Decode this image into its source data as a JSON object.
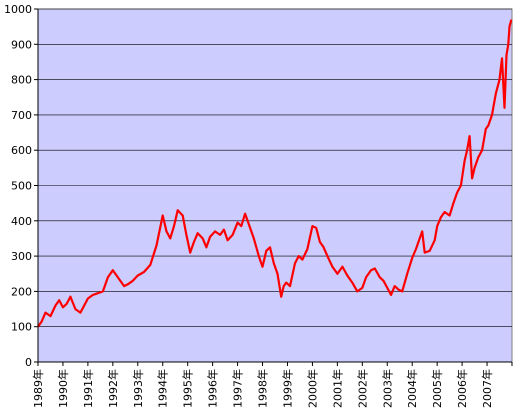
{
  "chart_data": {
    "type": "line",
    "title": "",
    "xlabel": "",
    "ylabel": "",
    "ylim": [
      0,
      1000
    ],
    "y_ticks": [
      0,
      100,
      200,
      300,
      400,
      500,
      600,
      700,
      800,
      900,
      1000
    ],
    "x_tick_labels": [
      "1989年",
      "1990年",
      "1991年",
      "1992年",
      "1993年",
      "1994年",
      "1995年",
      "1996年",
      "1997年",
      "1998年",
      "1999年",
      "2000年",
      "2001年",
      "2002年",
      "2003年",
      "2004年",
      "2005年",
      "2006年",
      "2007年"
    ],
    "xlim": [
      1989.0,
      2008.0
    ],
    "grid": true,
    "legend": "none",
    "colors": {
      "plot_bg": "#ccccff",
      "line": "#ff0000",
      "grid": "#000000"
    },
    "series": [
      {
        "x": [
          1989.0,
          1989.15,
          1989.3,
          1989.5,
          1989.7,
          1989.85,
          1990.0,
          1990.15,
          1990.3,
          1990.5,
          1990.7,
          1990.85,
          1991.0,
          1991.2,
          1991.4,
          1991.6,
          1991.8,
          1992.0,
          1992.2,
          1992.45,
          1992.6,
          1992.8,
          1993.0,
          1993.25,
          1993.5,
          1993.75,
          1994.0,
          1994.15,
          1994.3,
          1994.45,
          1994.6,
          1994.8,
          1994.95,
          1995.1,
          1995.25,
          1995.4,
          1995.6,
          1995.75,
          1995.9,
          1996.1,
          1996.3,
          1996.45,
          1996.6,
          1996.8,
          1997.0,
          1997.15,
          1997.3,
          1997.5,
          1997.65,
          1997.85,
          1998.0,
          1998.15,
          1998.3,
          1998.45,
          1998.6,
          1998.75,
          1998.85,
          1998.95,
          1999.1,
          1999.3,
          1999.45,
          1999.6,
          1999.8,
          2000.0,
          2000.15,
          2000.3,
          2000.45,
          2000.6,
          2000.8,
          2001.0,
          2001.2,
          2001.4,
          2001.6,
          2001.8,
          2002.0,
          2002.15,
          2002.35,
          2002.5,
          2002.7,
          2002.85,
          2003.0,
          2003.15,
          2003.3,
          2003.45,
          2003.6,
          2003.8,
          2004.0,
          2004.15,
          2004.3,
          2004.4,
          2004.5,
          2004.7,
          2004.9,
          2005.0,
          2005.15,
          2005.3,
          2005.5,
          2005.65,
          2005.8,
          2005.95,
          2006.1,
          2006.2,
          2006.3,
          2006.4,
          2006.5,
          2006.65,
          2006.8,
          2006.95,
          2007.05,
          2007.2,
          2007.35,
          2007.5,
          2007.6,
          2007.7,
          2007.78,
          2007.85,
          2007.9,
          2007.97
        ],
        "y": [
          100,
          115,
          140,
          130,
          160,
          175,
          155,
          165,
          185,
          150,
          140,
          160,
          180,
          190,
          195,
          200,
          240,
          260,
          240,
          215,
          220,
          230,
          245,
          255,
          275,
          330,
          415,
          370,
          350,
          385,
          430,
          415,
          360,
          310,
          340,
          365,
          350,
          325,
          355,
          370,
          360,
          375,
          345,
          360,
          395,
          385,
          420,
          380,
          350,
          300,
          270,
          315,
          325,
          280,
          250,
          185,
          215,
          225,
          215,
          280,
          300,
          290,
          320,
          385,
          380,
          340,
          325,
          300,
          270,
          250,
          270,
          245,
          225,
          200,
          210,
          240,
          260,
          265,
          240,
          230,
          210,
          190,
          215,
          205,
          200,
          250,
          295,
          320,
          350,
          370,
          310,
          315,
          345,
          385,
          410,
          425,
          415,
          450,
          480,
          500,
          570,
          600,
          640,
          520,
          550,
          580,
          600,
          660,
          670,
          700,
          760,
          800,
          860,
          720,
          870,
          900,
          950,
          970
        ]
      }
    ]
  }
}
